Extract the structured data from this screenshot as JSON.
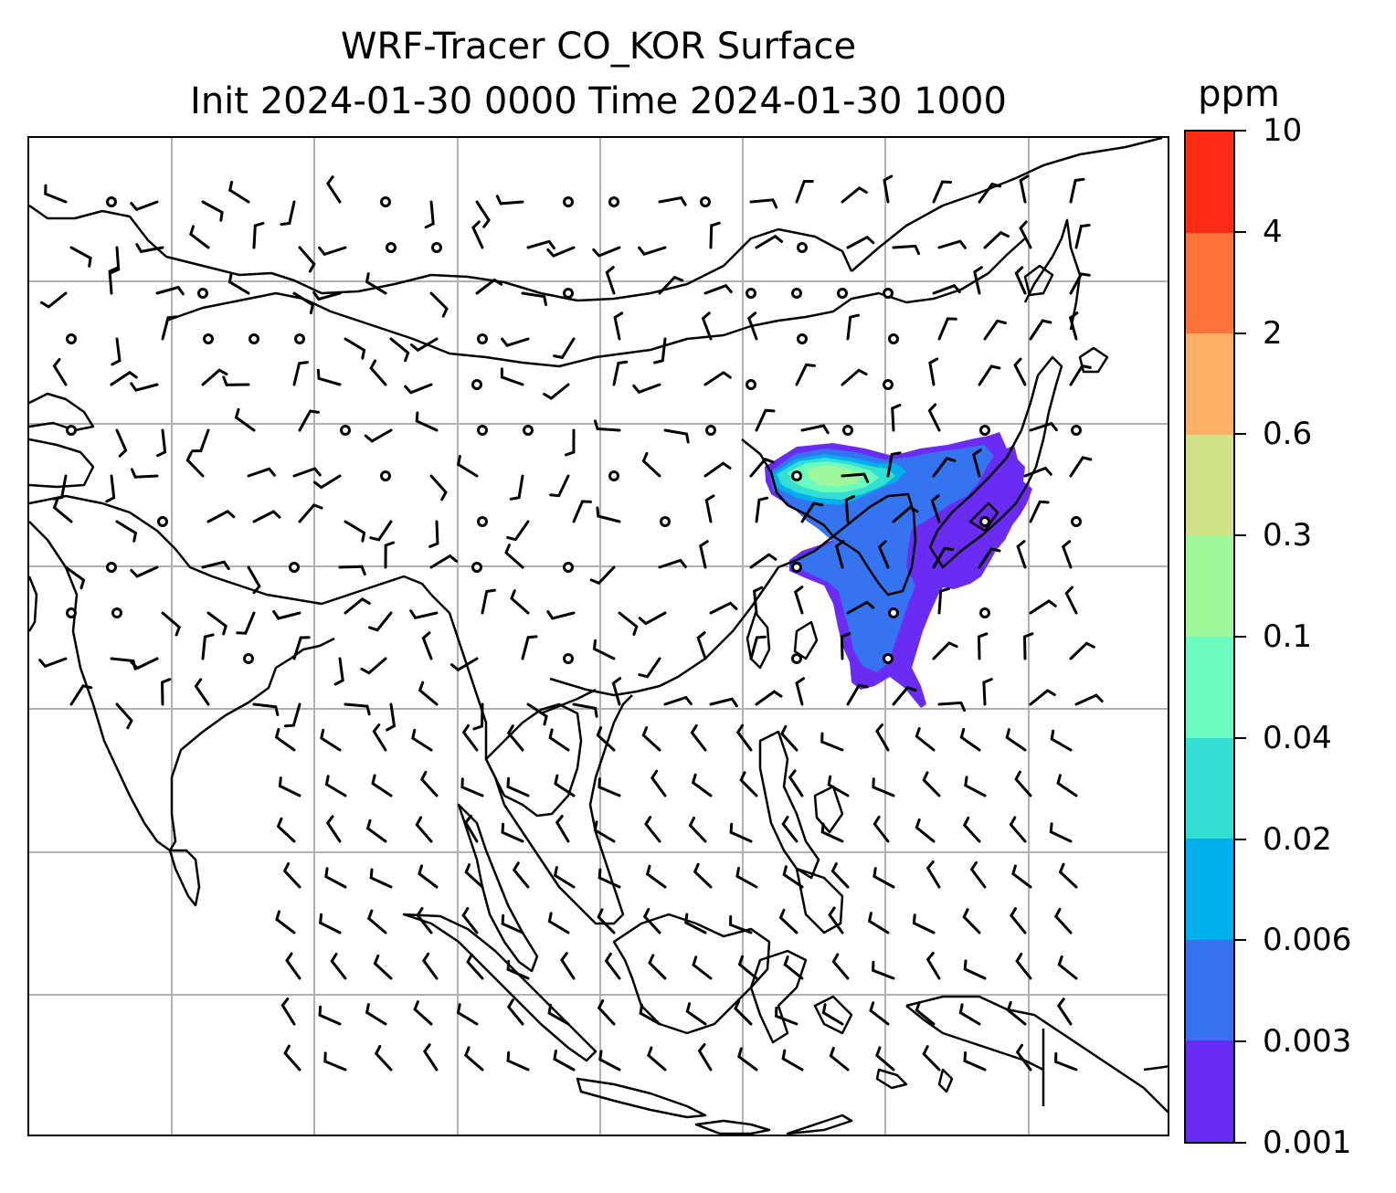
{
  "title": {
    "line1": "WRF-Tracer CO_KOR Surface",
    "line2": "Init 2024-01-30 0000 Time 2024-01-30 1000"
  },
  "colorbar": {
    "units": "ppm",
    "levels": [
      "0.001",
      "0.003",
      "0.006",
      "0.02",
      "0.04",
      "0.1",
      "0.3",
      "0.6",
      "2",
      "4",
      "10"
    ],
    "colors": [
      "#6a2cf5",
      "#3574f0",
      "#00b0ec",
      "#33dfd2",
      "#6afbc1",
      "#9ff99b",
      "#d0e285",
      "#fdb066",
      "#ff7239",
      "#ff2a14"
    ]
  },
  "map": {
    "gridlines": true,
    "gridline_color": "#b0b0b0",
    "coastline_color": "#000000",
    "wind_barbs": true,
    "calm_wind_circles": true
  }
}
